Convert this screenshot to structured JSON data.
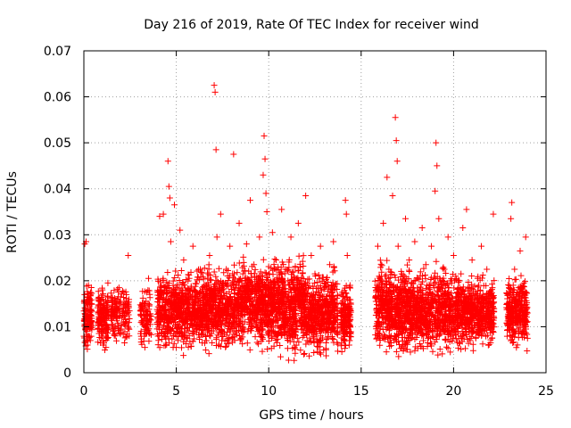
{
  "chart_data": {
    "type": "scatter",
    "title": "Day 216 of 2019, Rate Of TEC Index for receiver wind",
    "xlabel": "GPS time / hours",
    "ylabel": "ROTI / TECUs",
    "xlim": [
      0,
      25
    ],
    "ylim": [
      0,
      0.07
    ],
    "xticks": [
      0,
      5,
      10,
      15,
      20,
      25
    ],
    "xtick_labels": [
      "0",
      "5",
      "10",
      "15",
      "20",
      "25"
    ],
    "yticks": [
      0,
      0.01,
      0.02,
      0.03,
      0.04,
      0.05,
      0.06,
      0.07
    ],
    "ytick_labels": [
      "0",
      "0.01",
      "0.02",
      "0.03",
      "0.04",
      "0.05",
      "0.06",
      "0.07"
    ],
    "grid": true,
    "marker": "plus",
    "marker_color": "#ff0000",
    "series": [
      {
        "name": "ROTI",
        "points": [
          [
            0.05,
            0.028
          ],
          [
            0.1,
            0.012
          ],
          [
            0.15,
            0.009
          ],
          [
            0.2,
            0.006
          ],
          [
            0.25,
            0.019
          ],
          [
            0.3,
            0.016
          ],
          [
            0.35,
            0.007
          ],
          [
            0.4,
            0.0135
          ],
          [
            0.12,
            0.0285
          ],
          [
            0.8,
            0.011
          ],
          [
            0.9,
            0.0065
          ],
          [
            1.0,
            0.018
          ],
          [
            1.05,
            0.006
          ],
          [
            1.1,
            0.014
          ],
          [
            1.15,
            0.009
          ],
          [
            1.2,
            0.0055
          ],
          [
            1.25,
            0.0125
          ],
          [
            1.3,
            0.0195
          ],
          [
            1.5,
            0.0105
          ],
          [
            1.6,
            0.0135
          ],
          [
            1.7,
            0.008
          ],
          [
            1.8,
            0.016
          ],
          [
            1.9,
            0.0185
          ],
          [
            2.0,
            0.0095
          ],
          [
            2.1,
            0.0125
          ],
          [
            2.2,
            0.0065
          ],
          [
            2.3,
            0.017
          ],
          [
            2.4,
            0.0255
          ],
          [
            2.45,
            0.008
          ],
          [
            3.1,
            0.009
          ],
          [
            3.2,
            0.0135
          ],
          [
            3.3,
            0.0055
          ],
          [
            3.4,
            0.0175
          ],
          [
            3.5,
            0.0205
          ],
          [
            3.6,
            0.0105
          ],
          [
            4.0,
            0.0105
          ],
          [
            4.1,
            0.034
          ],
          [
            4.2,
            0.0185
          ],
          [
            4.3,
            0.0345
          ],
          [
            4.4,
            0.009
          ],
          [
            4.5,
            0.0175
          ],
          [
            4.55,
            0.046
          ],
          [
            4.6,
            0.0405
          ],
          [
            4.65,
            0.038
          ],
          [
            4.7,
            0.0285
          ],
          [
            4.8,
            0.012
          ],
          [
            4.9,
            0.0365
          ],
          [
            5.0,
            0.0055
          ],
          [
            5.1,
            0.015
          ],
          [
            5.2,
            0.031
          ],
          [
            5.3,
            0.0095
          ],
          [
            5.4,
            0.0245
          ],
          [
            5.5,
            0.0165
          ],
          [
            5.6,
            0.0075
          ],
          [
            5.7,
            0.0205
          ],
          [
            5.8,
            0.0125
          ],
          [
            5.9,
            0.0275
          ],
          [
            6.0,
            0.0175
          ],
          [
            6.1,
            0.0095
          ],
          [
            6.2,
            0.0155
          ],
          [
            6.3,
            0.0225
          ],
          [
            6.4,
            0.0065
          ],
          [
            6.5,
            0.0135
          ],
          [
            6.6,
            0.019
          ],
          [
            6.7,
            0.0105
          ],
          [
            6.8,
            0.0255
          ],
          [
            6.9,
            0.0085
          ],
          [
            7.0,
            0.0165
          ],
          [
            7.05,
            0.0625
          ],
          [
            7.1,
            0.061
          ],
          [
            7.15,
            0.0485
          ],
          [
            7.2,
            0.0295
          ],
          [
            7.3,
            0.0125
          ],
          [
            7.4,
            0.0345
          ],
          [
            7.5,
            0.0195
          ],
          [
            7.6,
            0.0085
          ],
          [
            7.7,
            0.0225
          ],
          [
            7.8,
            0.0155
          ],
          [
            7.9,
            0.0275
          ],
          [
            8.0,
            0.0105
          ],
          [
            8.1,
            0.0475
          ],
          [
            8.2,
            0.0185
          ],
          [
            8.3,
            0.0125
          ],
          [
            8.4,
            0.0325
          ],
          [
            8.5,
            0.0075
          ],
          [
            8.6,
            0.0215
          ],
          [
            8.7,
            0.0145
          ],
          [
            8.8,
            0.028
          ],
          [
            8.9,
            0.0095
          ],
          [
            9.0,
            0.0375
          ],
          [
            9.1,
            0.0175
          ],
          [
            9.2,
            0.0235
          ],
          [
            9.3,
            0.0105
          ],
          [
            9.4,
            0.0195
          ],
          [
            9.5,
            0.0295
          ],
          [
            9.6,
            0.0135
          ],
          [
            9.7,
            0.043
          ],
          [
            9.75,
            0.0515
          ],
          [
            9.8,
            0.0465
          ],
          [
            9.85,
            0.039
          ],
          [
            9.9,
            0.035
          ],
          [
            10.0,
            0.0215
          ],
          [
            10.1,
            0.0105
          ],
          [
            10.2,
            0.0305
          ],
          [
            10.3,
            0.0165
          ],
          [
            10.4,
            0.0245
          ],
          [
            10.5,
            0.0085
          ],
          [
            10.6,
            0.0185
          ],
          [
            10.7,
            0.0355
          ],
          [
            10.8,
            0.0125
          ],
          [
            10.9,
            0.0225
          ],
          [
            11.0,
            0.0075
          ],
          [
            11.1,
            0.0175
          ],
          [
            11.2,
            0.0295
          ],
          [
            11.3,
            0.0135
          ],
          [
            11.4,
            0.0055
          ],
          [
            11.5,
            0.0205
          ],
          [
            11.6,
            0.0325
          ],
          [
            11.7,
            0.0115
          ],
          [
            11.8,
            0.0165
          ],
          [
            11.9,
            0.004
          ],
          [
            12.0,
            0.0385
          ],
          [
            12.1,
            0.0195
          ],
          [
            12.2,
            0.0095
          ],
          [
            12.3,
            0.0255
          ],
          [
            12.4,
            0.0145
          ],
          [
            12.5,
            0.0215
          ],
          [
            12.6,
            0.0085
          ],
          [
            12.7,
            0.0175
          ],
          [
            12.8,
            0.0275
          ],
          [
            12.9,
            0.0115
          ],
          [
            13.0,
            0.0195
          ],
          [
            13.1,
            0.0065
          ],
          [
            13.2,
            0.0155
          ],
          [
            13.3,
            0.0235
          ],
          [
            13.4,
            0.0105
          ],
          [
            13.5,
            0.0285
          ],
          [
            13.6,
            0.0145
          ],
          [
            13.7,
            0.0085
          ],
          [
            13.95,
            0.009
          ],
          [
            14.05,
            0.0165
          ],
          [
            14.15,
            0.0375
          ],
          [
            14.2,
            0.0345
          ],
          [
            14.25,
            0.0255
          ],
          [
            14.3,
            0.0125
          ],
          [
            14.35,
            0.006
          ],
          [
            14.4,
            0.019
          ],
          [
            15.8,
            0.0125
          ],
          [
            15.9,
            0.0275
          ],
          [
            16.0,
            0.0085
          ],
          [
            16.1,
            0.0195
          ],
          [
            16.2,
            0.0325
          ],
          [
            16.3,
            0.0145
          ],
          [
            16.4,
            0.0425
          ],
          [
            16.5,
            0.0225
          ],
          [
            16.6,
            0.0065
          ],
          [
            16.7,
            0.0385
          ],
          [
            16.8,
            0.0175
          ],
          [
            16.85,
            0.0555
          ],
          [
            16.9,
            0.0505
          ],
          [
            16.95,
            0.046
          ],
          [
            17.0,
            0.0275
          ],
          [
            17.1,
            0.0125
          ],
          [
            17.2,
            0.0215
          ],
          [
            17.3,
            0.0095
          ],
          [
            17.4,
            0.0335
          ],
          [
            17.5,
            0.0165
          ],
          [
            17.6,
            0.0245
          ],
          [
            17.7,
            0.0075
          ],
          [
            17.8,
            0.0185
          ],
          [
            17.9,
            0.0285
          ],
          [
            18.0,
            0.0135
          ],
          [
            18.1,
            0.0205
          ],
          [
            18.2,
            0.0095
          ],
          [
            18.3,
            0.0315
          ],
          [
            18.4,
            0.0155
          ],
          [
            18.5,
            0.0235
          ],
          [
            18.6,
            0.0065
          ],
          [
            18.7,
            0.0175
          ],
          [
            18.8,
            0.0275
          ],
          [
            18.9,
            0.0125
          ],
          [
            19.0,
            0.0395
          ],
          [
            19.05,
            0.05
          ],
          [
            19.1,
            0.045
          ],
          [
            19.2,
            0.0335
          ],
          [
            19.3,
            0.0185
          ],
          [
            19.4,
            0.0095
          ],
          [
            19.5,
            0.0225
          ],
          [
            19.6,
            0.0145
          ],
          [
            19.7,
            0.0295
          ],
          [
            19.8,
            0.0085
          ],
          [
            19.9,
            0.0195
          ],
          [
            20.0,
            0.0255
          ],
          [
            20.1,
            0.0115
          ],
          [
            20.2,
            0.0175
          ],
          [
            20.3,
            0.0065
          ],
          [
            20.4,
            0.0215
          ],
          [
            20.5,
            0.0315
          ],
          [
            20.6,
            0.0135
          ],
          [
            20.7,
            0.0355
          ],
          [
            20.8,
            0.0185
          ],
          [
            20.9,
            0.0095
          ],
          [
            21.0,
            0.0245
          ],
          [
            21.1,
            0.0155
          ],
          [
            21.2,
            0.0075
          ],
          [
            21.3,
            0.0205
          ],
          [
            21.4,
            0.0125
          ],
          [
            21.5,
            0.0275
          ],
          [
            21.6,
            0.0165
          ],
          [
            21.7,
            0.0095
          ],
          [
            21.8,
            0.0225
          ],
          [
            21.9,
            0.0135
          ],
          [
            22.0,
            0.0065
          ],
          [
            22.1,
            0.0185
          ],
          [
            22.15,
            0.0345
          ],
          [
            22.9,
            0.0105
          ],
          [
            23.0,
            0.0185
          ],
          [
            23.1,
            0.0335
          ],
          [
            23.15,
            0.037
          ],
          [
            23.2,
            0.0065
          ],
          [
            23.3,
            0.0225
          ],
          [
            23.4,
            0.0145
          ],
          [
            23.5,
            0.0095
          ],
          [
            23.6,
            0.0265
          ],
          [
            23.7,
            0.0125
          ],
          [
            23.8,
            0.0195
          ],
          [
            23.9,
            0.0295
          ],
          [
            24.0,
            0.0075
          ]
        ],
        "bands": [
          {
            "x": [
              0.0,
              0.45
            ],
            "y": [
              0.004,
              0.021
            ],
            "n": 130
          },
          {
            "x": [
              0.75,
              1.35
            ],
            "y": [
              0.004,
              0.02
            ],
            "n": 150
          },
          {
            "x": [
              1.45,
              2.5
            ],
            "y": [
              0.005,
              0.02
            ],
            "n": 140
          },
          {
            "x": [
              3.05,
              3.65
            ],
            "y": [
              0.004,
              0.021
            ],
            "n": 90
          },
          {
            "x": [
              3.95,
              5.95
            ],
            "y": [
              0.003,
              0.024
            ],
            "n": 520
          },
          {
            "x": [
              5.95,
              8.0
            ],
            "y": [
              0.003,
              0.025
            ],
            "n": 560
          },
          {
            "x": [
              8.0,
              10.0
            ],
            "y": [
              0.003,
              0.027
            ],
            "n": 560
          },
          {
            "x": [
              10.0,
              12.0
            ],
            "y": [
              0.002,
              0.027
            ],
            "n": 620
          },
          {
            "x": [
              12.0,
              13.75
            ],
            "y": [
              0.002,
              0.024
            ],
            "n": 480
          },
          {
            "x": [
              13.9,
              14.45
            ],
            "y": [
              0.003,
              0.021
            ],
            "n": 150
          },
          {
            "x": [
              15.75,
              17.5
            ],
            "y": [
              0.002,
              0.026
            ],
            "n": 520
          },
          {
            "x": [
              17.5,
              19.5
            ],
            "y": [
              0.002,
              0.025
            ],
            "n": 540
          },
          {
            "x": [
              19.5,
              21.0
            ],
            "y": [
              0.003,
              0.024
            ],
            "n": 420
          },
          {
            "x": [
              21.0,
              22.2
            ],
            "y": [
              0.004,
              0.022
            ],
            "n": 300
          },
          {
            "x": [
              22.85,
              24.0
            ],
            "y": [
              0.004,
              0.022
            ],
            "n": 320
          }
        ]
      }
    ]
  }
}
